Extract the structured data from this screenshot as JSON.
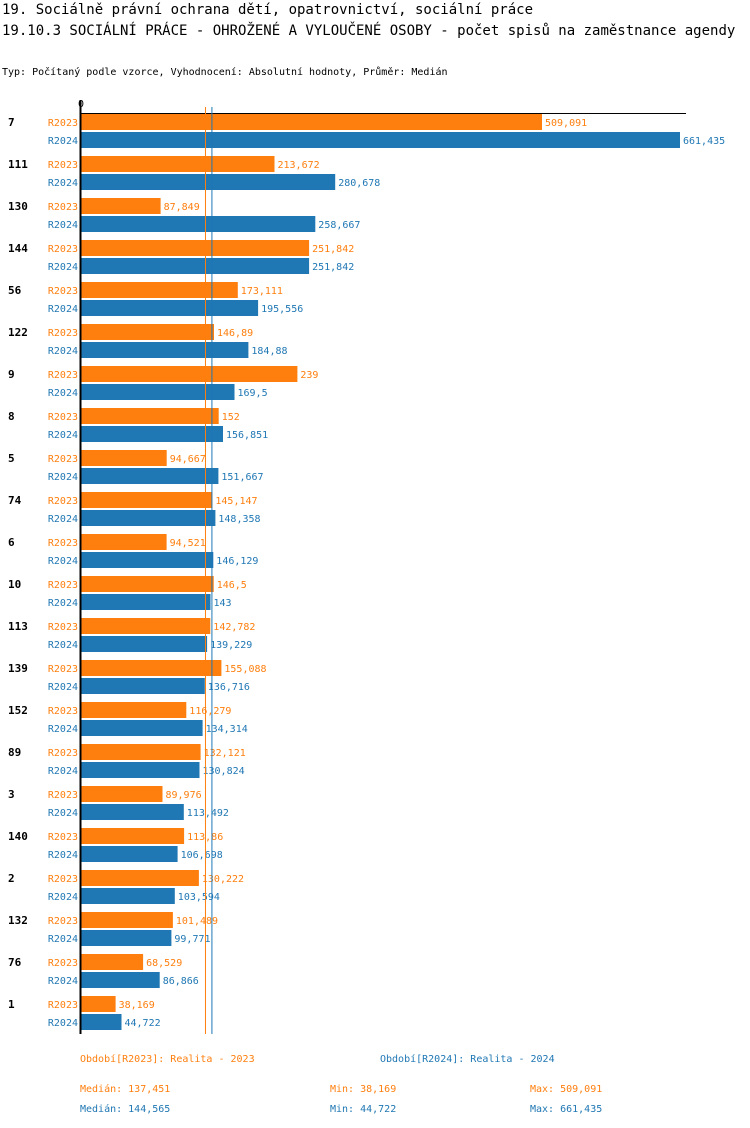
{
  "header": {
    "title_line1": "19. Sociálně právní ochrana dětí, opatrovnictví, sociální práce",
    "title_line2": "19.10.3 SOCIÁLNÍ PRÁCE - OHROŽENÉ A VYLOUČENÉ OSOBY - počet spisů na zaměstnance agendy",
    "subtitle": "Typ: Počítaný podle vzorce, Vyhodnocení: Absolutní hodnoty, Průměr: Medián"
  },
  "colors": {
    "r2023": "#ff7f0e",
    "r2024": "#1f77b4",
    "axis": "#000000"
  },
  "chart_data": {
    "type": "bar",
    "orientation": "horizontal",
    "axis_zero_label": "0",
    "xlim": [
      0,
      661.435
    ],
    "categories": [
      "7",
      "111",
      "130",
      "144",
      "56",
      "122",
      "9",
      "8",
      "5",
      "74",
      "6",
      "10",
      "113",
      "139",
      "152",
      "89",
      "3",
      "140",
      "2",
      "132",
      "76",
      "1"
    ],
    "series": [
      {
        "name": "R2023",
        "values": [
          509.091,
          213.672,
          87.849,
          251.842,
          173.111,
          146.89,
          239,
          152,
          94.667,
          145.147,
          94.521,
          146.5,
          142.782,
          155.088,
          116.279,
          132.121,
          89.976,
          113.86,
          130.222,
          101.489,
          68.529,
          38.169
        ],
        "labels": [
          "509,091",
          "213,672",
          "87,849",
          "251,842",
          "173,111",
          "146,89",
          "239",
          "152",
          "94,667",
          "145,147",
          "94,521",
          "146,5",
          "142,782",
          "155,088",
          "116,279",
          "132,121",
          "89,976",
          "113,86",
          "130,222",
          "101,489",
          "68,529",
          "38,169"
        ]
      },
      {
        "name": "R2024",
        "values": [
          661.435,
          280.678,
          258.667,
          251.842,
          195.556,
          184.88,
          169.5,
          156.851,
          151.667,
          148.358,
          146.129,
          143,
          139.229,
          136.716,
          134.314,
          130.824,
          113.492,
          106.698,
          103.594,
          99.771,
          86.866,
          44.722
        ],
        "labels": [
          "661,435",
          "280,678",
          "258,667",
          "251,842",
          "195,556",
          "184,88",
          "169,5",
          "156,851",
          "151,667",
          "148,358",
          "146,129",
          "143",
          "139,229",
          "136,716",
          "134,314",
          "130,824",
          "113,492",
          "106,698",
          "103,594",
          "99,771",
          "86,866",
          "44,722"
        ]
      }
    ],
    "median_lines": {
      "R2023": 137.451,
      "R2024": 144.565
    }
  },
  "legend": {
    "r2023": "Období[R2023]: Realita - 2023",
    "r2024": "Období[R2024]: Realita - 2024"
  },
  "stats": {
    "r2023": {
      "median": "Medián: 137,451",
      "min": "Min: 38,169",
      "max": "Max: 509,091"
    },
    "r2024": {
      "median": "Medián: 144,565",
      "min": "Min: 44,722",
      "max": "Max: 661,435"
    }
  }
}
